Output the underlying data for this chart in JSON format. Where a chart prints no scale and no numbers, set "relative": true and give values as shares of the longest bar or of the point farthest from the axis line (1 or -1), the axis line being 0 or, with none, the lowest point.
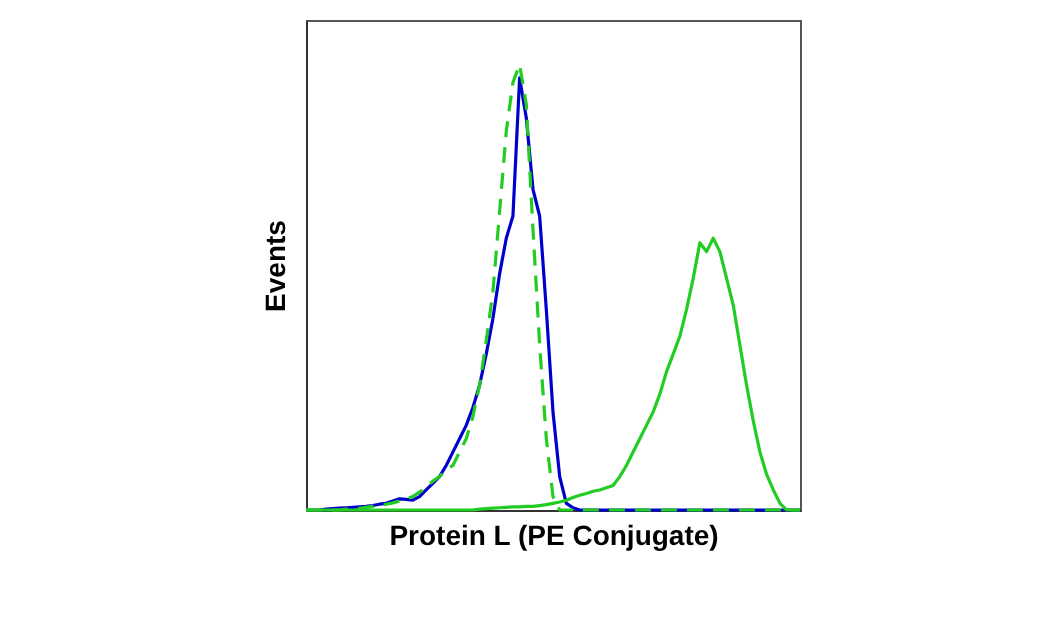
{
  "chart_data": {
    "type": "line",
    "relative": true,
    "xlabel": "Protein L (PE Conjugate)",
    "ylabel": "Events",
    "grid": false,
    "marker": "none",
    "tick_labels": false,
    "categories": [
      null,
      null,
      null,
      null,
      null,
      null,
      null,
      null,
      null,
      null,
      null,
      null,
      null,
      null,
      null,
      null,
      null,
      null,
      null,
      null,
      null,
      null,
      null,
      null,
      null,
      null,
      null,
      null,
      null,
      null,
      null,
      null,
      null,
      null,
      null,
      null,
      null,
      null,
      null,
      null,
      null,
      null,
      null,
      null,
      null,
      null,
      null,
      null,
      null,
      null,
      null,
      null,
      null,
      null,
      null,
      null,
      null,
      null,
      null,
      null,
      null,
      null,
      null,
      null,
      null,
      null,
      null,
      null,
      null,
      null,
      null,
      null,
      null,
      null,
      null
    ],
    "series": [
      {
        "color": "#0000cc",
        "line_style": "solid",
        "values": [
          0,
          0,
          0,
          0.002,
          0.003,
          0.004,
          0.005,
          0.006,
          0.007,
          0.008,
          0.01,
          0.013,
          0.015,
          0.02,
          0.025,
          0.024,
          0.022,
          0.03,
          0.045,
          0.06,
          0.075,
          0.1,
          0.13,
          0.16,
          0.19,
          0.23,
          0.28,
          0.35,
          0.43,
          0.53,
          0.61,
          0.66,
          0.97,
          0.88,
          0.72,
          0.66,
          0.45,
          0.22,
          0.075,
          0.015,
          0.005,
          0,
          0,
          0,
          0,
          0,
          0,
          0,
          0,
          0,
          0,
          0,
          0,
          0,
          0,
          0,
          0,
          0,
          0,
          0,
          0,
          0,
          0,
          0,
          0,
          0,
          0,
          0,
          0,
          0,
          0,
          0,
          0,
          0,
          0
        ]
      },
      {
        "color": "#22cc22",
        "line_style": "dashed",
        "values": [
          0,
          0,
          0,
          0,
          0,
          0,
          0.002,
          0.003,
          0.004,
          0.006,
          0.008,
          0.01,
          0.013,
          0.016,
          0.02,
          0.025,
          0.03,
          0.04,
          0.05,
          0.065,
          0.075,
          0.09,
          0.1,
          0.13,
          0.16,
          0.21,
          0.28,
          0.38,
          0.49,
          0.67,
          0.85,
          0.96,
          1,
          0.91,
          0.63,
          0.37,
          0.16,
          0.03,
          0,
          0,
          0,
          0,
          0,
          0,
          0,
          0,
          0,
          0,
          0,
          0,
          0,
          0,
          0,
          0,
          0,
          0,
          0,
          0,
          0,
          0,
          0,
          0,
          0,
          0,
          0,
          0,
          0,
          0,
          0,
          0,
          0,
          0,
          0,
          0,
          0
        ]
      },
      {
        "color": "#22cc22",
        "line_style": "solid",
        "values": [
          0,
          0,
          0,
          0,
          0,
          0,
          0,
          0,
          0,
          0,
          0,
          0,
          0,
          0,
          0,
          0,
          0,
          0,
          0,
          0,
          0,
          0,
          0,
          0,
          0,
          0,
          0.002,
          0.003,
          0.004,
          0.005,
          0.006,
          0.007,
          0.007,
          0.008,
          0.008,
          0.01,
          0.012,
          0.015,
          0.018,
          0.022,
          0.028,
          0.033,
          0.037,
          0.042,
          0.045,
          0.05,
          0.055,
          0.075,
          0.1,
          0.13,
          0.16,
          0.19,
          0.22,
          0.26,
          0.31,
          0.35,
          0.39,
          0.45,
          0.52,
          0.6,
          0.58,
          0.61,
          0.58,
          0.52,
          0.46,
          0.37,
          0.28,
          0.2,
          0.13,
          0.08,
          0.045,
          0.015,
          0,
          0,
          0
        ]
      }
    ]
  }
}
